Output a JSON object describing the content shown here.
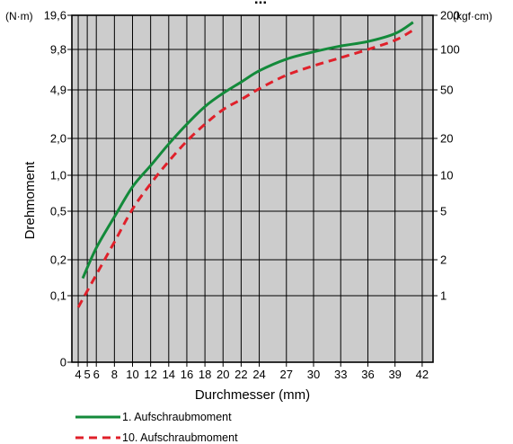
{
  "chart_data": {
    "type": "line",
    "title_fragment": "...",
    "xlabel": "Durchmesser (mm)",
    "ylabel": "Drehmoment",
    "y_unit_left": "(N·m)",
    "y_unit_right": "(kgf·cm)",
    "x_ticks": [
      4,
      5,
      6,
      8,
      10,
      12,
      14,
      16,
      18,
      20,
      22,
      24,
      27,
      30,
      33,
      36,
      39,
      42
    ],
    "xlim": [
      3.3,
      43.2
    ],
    "y_ticks_left": [
      "0",
      "0,1",
      "0,2",
      "0,5",
      "1,0",
      "2,0",
      "4,9",
      "9,8",
      "19,6"
    ],
    "y_ticks_right": [
      "1",
      "2",
      "5",
      "10",
      "20",
      "50",
      "100",
      "200"
    ],
    "colors": {
      "plot_background": "#cccccc",
      "series1": "#138a3a",
      "series2": "#e0202a"
    },
    "grid": true,
    "series": [
      {
        "name": "1. Aufschraubmoment",
        "style": "solid",
        "x": [
          4.5,
          6,
          8,
          10,
          12,
          14,
          16,
          18,
          20,
          22,
          24,
          27,
          30,
          33,
          36,
          39,
          41
        ],
        "y": [
          0.14,
          0.25,
          0.45,
          0.8,
          1.2,
          1.8,
          2.6,
          3.6,
          4.6,
          5.6,
          6.8,
          8.3,
          9.4,
          10.5,
          11.5,
          13.5,
          17.0
        ]
      },
      {
        "name": "10. Aufschraubmoment",
        "style": "dashed",
        "x": [
          4,
          6,
          8,
          10,
          12,
          14,
          16,
          18,
          20,
          22,
          24,
          27,
          30,
          33,
          36,
          39,
          41
        ],
        "y": [
          0.08,
          0.15,
          0.28,
          0.52,
          0.85,
          1.3,
          1.9,
          2.6,
          3.4,
          4.1,
          5.0,
          6.3,
          7.4,
          8.5,
          9.8,
          11.8,
          14.5
        ]
      }
    ],
    "legend": {
      "position": "bottom-left"
    }
  }
}
